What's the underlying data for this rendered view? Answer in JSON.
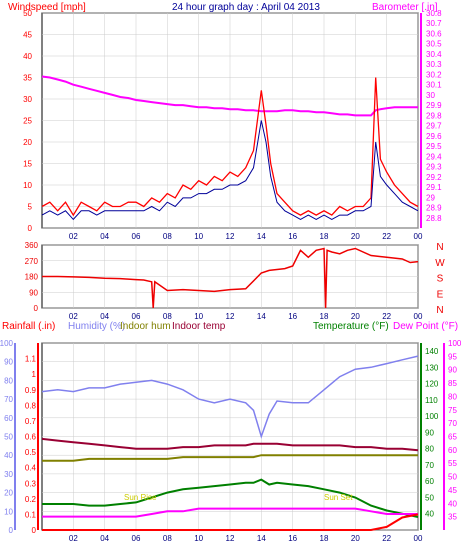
{
  "header": {
    "windspeed_label": "Windspeed [mph]",
    "title": "24 hour graph day : April 04 2013",
    "barometer_label": "Barometer [.in]"
  },
  "legend": {
    "rainfall": "Rainfall (.in)",
    "humidity": "Humidity (%)",
    "indoor_hum": "Indoor hum",
    "indoor_temp": "Indoor temp",
    "temperature": "Temperature (°F)",
    "dew_point": "Dew Point (°F)"
  },
  "annotations": {
    "sunrise": "Sun Rise",
    "sunset": "Sun Set"
  },
  "colors": {
    "wind": "#ff0000",
    "wind_avg": "#000099",
    "barometer": "#ff00ff",
    "direction": "#ee0000",
    "rainfall": "#ff0000",
    "humidity": "#8080ee",
    "indoor_hum": "#808000",
    "indoor_temp": "#990033",
    "temperature": "#008000",
    "dew_point": "#ff00ff",
    "sun_marker": "#ffff00"
  },
  "chart_data": [
    {
      "type": "line",
      "name": "wind-barometer",
      "x_tick_labels": [
        "02",
        "04",
        "06",
        "08",
        "10",
        "12",
        "14",
        "16",
        "18",
        "20",
        "22",
        "00"
      ],
      "left_axis": {
        "label": "Windspeed [mph]",
        "ylim": [
          0,
          50
        ],
        "ticks": [
          "0",
          "5",
          "10",
          "15",
          "20",
          "25",
          "30",
          "35",
          "40",
          "45",
          "50"
        ]
      },
      "right_axis": {
        "label": "Barometer [.in]",
        "ylim": [
          28.7,
          30.8
        ],
        "ticks": [
          "28.8",
          "28.9",
          "29",
          "29.1",
          "29.2",
          "29.3",
          "29.4",
          "29.5",
          "29.6",
          "29.7",
          "29.8",
          "29.9",
          "30",
          "30.1",
          "30.2",
          "30.3",
          "30.4",
          "30.5",
          "30.6",
          "30.7",
          "30.8"
        ]
      },
      "grid": true,
      "x": [
        0,
        0.5,
        1,
        1.5,
        2,
        2.5,
        3,
        3.5,
        4,
        4.5,
        5,
        5.5,
        6,
        6.5,
        7,
        7.5,
        8,
        8.5,
        9,
        9.5,
        10,
        10.5,
        11,
        11.5,
        12,
        12.5,
        13,
        13.5,
        14,
        14.3,
        14.6,
        15,
        15.5,
        16,
        16.5,
        17,
        17.5,
        18,
        18.5,
        19,
        19.5,
        20,
        20.5,
        21,
        21.3,
        21.6,
        22,
        22.5,
        23,
        23.5,
        24
      ],
      "series": [
        {
          "name": "Windspeed [mph]",
          "axis": "left",
          "values": [
            5,
            6,
            4,
            6,
            3,
            6,
            5,
            4,
            6,
            5,
            5,
            6,
            6,
            5,
            7,
            6,
            8,
            7,
            10,
            9,
            11,
            10,
            12,
            11,
            13,
            12,
            14,
            18,
            32,
            24,
            15,
            8,
            6,
            4,
            3,
            4,
            3,
            4,
            3,
            5,
            4,
            5,
            5,
            7,
            35,
            16,
            13,
            10,
            8,
            6,
            5
          ]
        },
        {
          "name": "Windspeed average",
          "axis": "left",
          "values": [
            3,
            4,
            3,
            4,
            2,
            4,
            4,
            3,
            4,
            4,
            4,
            4,
            4,
            4,
            5,
            4,
            6,
            5,
            7,
            7,
            8,
            8,
            9,
            9,
            10,
            10,
            11,
            14,
            25,
            20,
            12,
            6,
            4,
            3,
            2,
            3,
            2,
            3,
            2,
            3,
            3,
            4,
            4,
            5,
            20,
            12,
            10,
            8,
            6,
            5,
            4
          ]
        },
        {
          "name": "Barometer [.in]",
          "axis": "right",
          "values": [
            30.18,
            30.17,
            30.15,
            30.13,
            30.1,
            30.08,
            30.06,
            30.04,
            30.02,
            30.0,
            29.98,
            29.97,
            29.95,
            29.94,
            29.93,
            29.92,
            29.91,
            29.9,
            29.9,
            29.89,
            29.88,
            29.88,
            29.87,
            29.87,
            29.86,
            29.86,
            29.85,
            29.85,
            29.84,
            29.84,
            29.84,
            29.84,
            29.85,
            29.85,
            29.84,
            29.84,
            29.83,
            29.83,
            29.82,
            29.81,
            29.81,
            29.8,
            29.8,
            29.8,
            29.85,
            29.86,
            29.87,
            29.88,
            29.88,
            29.88,
            29.88
          ]
        }
      ]
    },
    {
      "type": "line",
      "name": "wind-direction",
      "x_tick_labels": [
        "02",
        "04",
        "06",
        "08",
        "10",
        "12",
        "14",
        "16",
        "18",
        "20",
        "22",
        "00"
      ],
      "left_axis": {
        "ylim": [
          0,
          360
        ],
        "ticks": [
          "0",
          "90",
          "180",
          "270",
          "360"
        ]
      },
      "right_axis": {
        "labels": [
          "N",
          "W",
          "S",
          "E",
          "N"
        ]
      },
      "grid": true,
      "x": [
        0,
        1,
        2,
        3,
        4,
        5,
        5.5,
        6,
        6.5,
        7,
        7.1,
        7.2,
        8,
        9,
        10,
        11,
        12,
        13,
        14,
        14.5,
        15,
        15.5,
        16,
        16.5,
        17,
        17.5,
        18,
        18.1,
        18.2,
        18.5,
        19,
        19.5,
        20,
        21,
        22,
        23,
        23.5,
        24
      ],
      "series": [
        {
          "name": "Wind direction",
          "values": [
            180,
            180,
            178,
            175,
            170,
            168,
            165,
            162,
            160,
            150,
            0,
            150,
            100,
            105,
            100,
            95,
            105,
            110,
            200,
            215,
            220,
            225,
            240,
            330,
            290,
            330,
            340,
            0,
            330,
            320,
            310,
            330,
            340,
            300,
            290,
            280,
            260,
            265
          ]
        }
      ]
    },
    {
      "type": "line",
      "name": "temperature-humidity-rain",
      "x_tick_labels": [
        "02",
        "04",
        "06",
        "08",
        "10",
        "12",
        "14",
        "16",
        "18",
        "20",
        "22",
        "00"
      ],
      "left_axes": [
        {
          "label": "Humidity (%)",
          "ylim": [
            0,
            100
          ],
          "ticks": [
            "0",
            "10",
            "20",
            "30",
            "40",
            "50",
            "60",
            "70",
            "80",
            "90",
            "100"
          ]
        },
        {
          "label": "Rainfall (.in)",
          "ylim": [
            0,
            1.2
          ],
          "ticks": [
            "0",
            "0.1",
            "0.2",
            "0.3",
            "0.4",
            "0.5",
            "0.6",
            "0.7",
            "0.8",
            "0.9",
            "1",
            "1.1"
          ]
        }
      ],
      "right_axes": [
        {
          "label": "Temperature (°F)",
          "ylim": [
            30,
            145
          ],
          "ticks": [
            "40",
            "50",
            "60",
            "70",
            "80",
            "90",
            "100",
            "110",
            "120",
            "130",
            "140"
          ]
        },
        {
          "label": "Dew Point (°F)",
          "ylim": [
            30,
            100
          ],
          "ticks": [
            "35",
            "40",
            "45",
            "50",
            "55",
            "60",
            "65",
            "70",
            "75",
            "80",
            "85",
            "90",
            "95",
            "100"
          ]
        }
      ],
      "grid": true,
      "x": [
        0,
        1,
        2,
        3,
        4,
        5,
        6,
        7,
        8,
        9,
        10,
        11,
        12,
        13,
        13.5,
        14,
        14.5,
        15,
        16,
        17,
        18,
        19,
        20,
        21,
        22,
        23,
        24
      ],
      "series": [
        {
          "name": "Humidity (%)",
          "axis": "Humidity (%)",
          "values": [
            74,
            75,
            74,
            76,
            76,
            78,
            79,
            80,
            78,
            75,
            70,
            68,
            70,
            68,
            64,
            50,
            62,
            69,
            68,
            68,
            75,
            82,
            86,
            87,
            89,
            91,
            93
          ]
        },
        {
          "name": "Indoor hum",
          "axis": "Humidity (%)",
          "values": [
            37,
            37,
            37,
            38,
            38,
            38,
            38,
            38,
            38,
            39,
            39,
            39,
            39,
            39,
            39,
            40,
            40,
            40,
            40,
            40,
            40,
            40,
            40,
            40,
            40,
            40,
            40
          ]
        },
        {
          "name": "Indoor temp",
          "axis": "Temperature (°F)",
          "values": [
            86,
            85,
            84,
            83,
            82,
            81,
            80,
            80,
            80,
            81,
            81,
            82,
            82,
            82,
            83,
            83,
            83,
            83,
            82,
            82,
            82,
            82,
            81,
            81,
            80,
            80,
            79
          ]
        },
        {
          "name": "Temperature (°F)",
          "axis": "Temperature (°F)",
          "values": [
            46,
            46,
            46,
            45,
            45,
            46,
            47,
            50,
            53,
            55,
            56,
            57,
            58,
            59,
            59,
            61,
            58,
            59,
            58,
            57,
            55,
            53,
            50,
            45,
            42,
            40,
            38
          ]
        },
        {
          "name": "Dew Point (°F)",
          "axis": "Dew Point (°F)",
          "values": [
            35,
            35,
            35,
            35,
            35,
            35,
            35,
            36,
            37,
            37,
            38,
            38,
            38,
            38,
            38,
            38,
            38,
            38,
            38,
            38,
            38,
            38,
            38,
            37,
            36,
            36,
            36
          ]
        },
        {
          "name": "Rainfall (.in)",
          "axis": "Rainfall (.in)",
          "values": [
            0,
            0,
            0,
            0,
            0,
            0,
            0,
            0,
            0,
            0,
            0,
            0,
            0,
            0,
            0,
            0,
            0,
            0,
            0,
            0,
            0,
            0,
            0,
            0,
            0.02,
            0.08,
            0.1
          ]
        }
      ]
    }
  ]
}
